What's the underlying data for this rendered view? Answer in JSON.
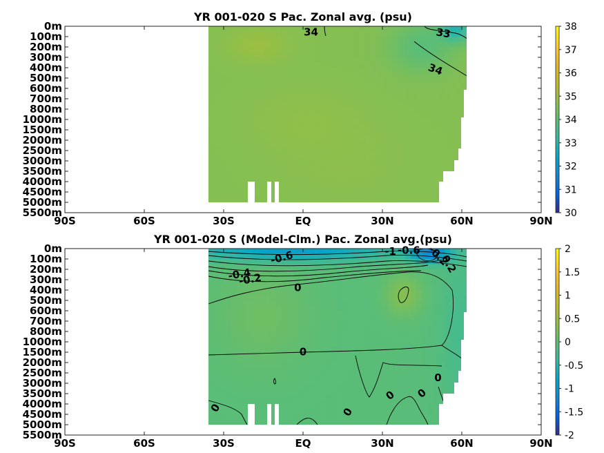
{
  "chart_data": [
    {
      "type": "heatmap",
      "title": "YR 001-020 S Pac. Zonal avg. (psu)",
      "xlabel": "",
      "ylabel": "",
      "x_ticks": [
        "90S",
        "60S",
        "30S",
        "EQ",
        "30N",
        "60N",
        "90N"
      ],
      "y_ticks": [
        "0m",
        "100m",
        "200m",
        "300m",
        "400m",
        "500m",
        "600m",
        "700m",
        "800m",
        "1000m",
        "1500m",
        "2000m",
        "2500m",
        "3000m",
        "3500m",
        "4000m",
        "4500m",
        "5000m",
        "5500m"
      ],
      "xlim": [
        -90,
        90
      ],
      "colorbar": {
        "min": 30,
        "max": 38,
        "ticks": [
          "30",
          "31",
          "32",
          "33",
          "34",
          "35",
          "36",
          "37",
          "38"
        ]
      },
      "background_value": 34.6,
      "fields": [
        {
          "x": -17,
          "y": 1.8,
          "sx": 11,
          "sy": 1.6,
          "v": 0.35
        },
        {
          "x": 0,
          "y": 9,
          "sx": 20,
          "sy": 3,
          "v": 0.15
        },
        {
          "x": 45,
          "y": 2.0,
          "sx": 12,
          "sy": 2.5,
          "v": -0.7
        },
        {
          "x": 58,
          "y": 0.3,
          "sx": 6,
          "sy": 1.2,
          "v": -1.6
        },
        {
          "x": 15,
          "y": 13,
          "sx": 25,
          "sy": 4,
          "v": 0.1
        }
      ],
      "contour_labels": [
        {
          "x": 3,
          "y": 0.6,
          "text": "34",
          "angle": 0
        },
        {
          "x": 53,
          "y": 0.7,
          "text": "33",
          "angle": 10
        },
        {
          "x": 50,
          "y": 4.2,
          "text": "34",
          "angle": 20
        }
      ]
    },
    {
      "type": "heatmap",
      "title": "YR 001-020 S (Model-Clm.) Pac. Zonal avg.(psu)",
      "xlabel": "",
      "ylabel": "",
      "x_ticks": [
        "90S",
        "60S",
        "30S",
        "EQ",
        "30N",
        "60N",
        "90N"
      ],
      "y_ticks": [
        "0m",
        "100m",
        "200m",
        "300m",
        "400m",
        "500m",
        "600m",
        "700m",
        "800m",
        "1000m",
        "1500m",
        "2000m",
        "2500m",
        "3000m",
        "3500m",
        "4000m",
        "4500m",
        "5000m",
        "5500m"
      ],
      "xlim": [
        -90,
        90
      ],
      "colorbar": {
        "min": -2,
        "max": 2,
        "ticks": [
          "2",
          "1.5",
          "1",
          "0.5",
          "0",
          "-0.5",
          "-1",
          "-1.5",
          "-2"
        ]
      },
      "background_value": -0.05,
      "fields": [
        {
          "x": -5,
          "y": 0.0,
          "sx": 40,
          "sy": 1.2,
          "v": -0.9
        },
        {
          "x": 48,
          "y": 0.4,
          "sx": 8,
          "sy": 1.0,
          "v": -1.0
        },
        {
          "x": 38,
          "y": 4.5,
          "sx": 7,
          "sy": 2.0,
          "v": 0.35
        },
        {
          "x": -15,
          "y": 6.5,
          "sx": 18,
          "sy": 5,
          "v": 0.18
        },
        {
          "x": 60,
          "y": 8,
          "sx": 8,
          "sy": 8,
          "v": -0.2
        }
      ],
      "contour_labels": [
        {
          "x": -8,
          "y": 0.9,
          "text": "-0.6",
          "angle": -15
        },
        {
          "x": -24,
          "y": 2.5,
          "text": "-0.4",
          "angle": -10
        },
        {
          "x": -20,
          "y": 3.0,
          "text": "-0.2",
          "angle": -10
        },
        {
          "x": 33,
          "y": 0.3,
          "text": "-1",
          "angle": 0
        },
        {
          "x": 40,
          "y": 0.2,
          "text": "-0.6",
          "angle": 0
        },
        {
          "x": 51,
          "y": 0.7,
          "text": "-0.2",
          "angle": 45
        },
        {
          "x": 55,
          "y": 1.5,
          "text": "0.2",
          "angle": 60
        },
        {
          "x": -2,
          "y": 3.8,
          "text": "0",
          "angle": 0
        },
        {
          "x": 0,
          "y": 10.0,
          "text": "0",
          "angle": 0
        },
        {
          "x": 51,
          "y": 12.5,
          "text": "0",
          "angle": 0
        },
        {
          "x": 45,
          "y": 14.0,
          "text": "0",
          "angle": -40
        },
        {
          "x": 33,
          "y": 14.2,
          "text": "0",
          "angle": -40
        },
        {
          "x": 17,
          "y": 15.8,
          "text": "0",
          "angle": -60
        },
        {
          "x": -33,
          "y": 15.4,
          "text": "0",
          "angle": -60
        }
      ]
    }
  ]
}
